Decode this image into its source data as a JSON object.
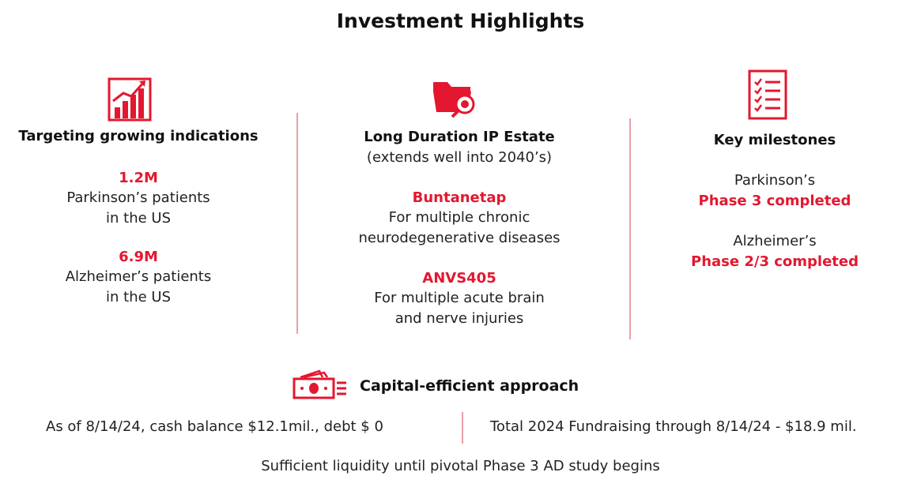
{
  "title": "Investment Highlights",
  "colors": {
    "accent": "#e3172f",
    "divider": "#e8a0a8"
  },
  "col1": {
    "icon": "growth-chart-icon",
    "heading": "Targeting growing indications",
    "stat1": "1.2M",
    "stat1_line1": "Parkinson’s patients",
    "stat1_line2": "in the US",
    "stat2": "6.9M",
    "stat2_line1": "Alzheimer’s patients",
    "stat2_line2": "in the US"
  },
  "col2": {
    "icon": "folder-search-icon",
    "heading": "Long Duration IP Estate",
    "subheading": "(extends well into 2040’s)",
    "item1_name": "Buntanetap",
    "item1_line1": "For multiple chronic",
    "item1_line2": "neurodegenerative diseases",
    "item2_name": "ANVS405",
    "item2_line1": "For multiple acute brain",
    "item2_line2": "and nerve injuries"
  },
  "col3": {
    "icon": "checklist-icon",
    "heading": "Key milestones",
    "m1_label": "Parkinson’s",
    "m1_status": "Phase 3 completed",
    "m2_label": "Alzheimer’s",
    "m2_status": "Phase 2/3 completed"
  },
  "capital": {
    "icon": "cash-icon",
    "heading": "Capital-efficient approach",
    "left": "As of 8/14/24, cash balance $12.1mil., debt $ 0",
    "right": "Total 2024 Fundraising through 8/14/24 - $18.9 mil.",
    "footer": "Sufficient liquidity until pivotal Phase 3 AD study begins"
  }
}
